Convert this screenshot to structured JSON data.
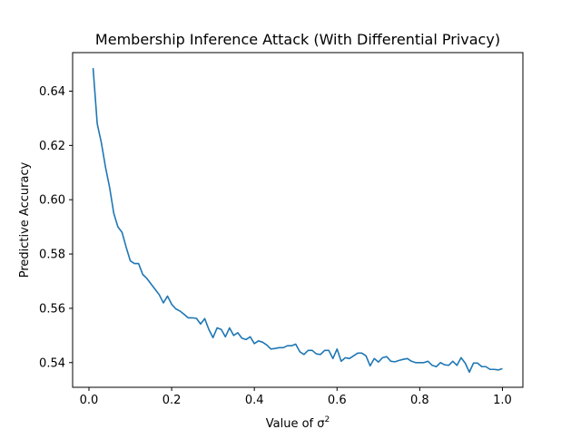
{
  "chart_data": {
    "type": "line",
    "title": "Membership Inference Attack (With Differential Privacy)",
    "xlabel": "Value of σ",
    "xlabel_superscript": "2",
    "ylabel": "Predictive Accuracy",
    "xlim": [
      -0.0395,
      1.0495
    ],
    "ylim": [
      0.5309,
      0.6542
    ],
    "xticks": [
      0.0,
      0.2,
      0.4,
      0.6,
      0.8,
      1.0
    ],
    "xtick_labels": [
      "0.0",
      "0.2",
      "0.4",
      "0.6",
      "0.8",
      "1.0"
    ],
    "yticks": [
      0.54,
      0.56,
      0.58,
      0.6,
      0.62,
      0.64
    ],
    "ytick_labels": [
      "0.54",
      "0.56",
      "0.58",
      "0.60",
      "0.62",
      "0.64"
    ],
    "grid": false,
    "legend": "none",
    "series": [
      {
        "color": "#1f77b4",
        "x": [
          0.01,
          0.02,
          0.03,
          0.04,
          0.05,
          0.06,
          0.07,
          0.08,
          0.09,
          0.1,
          0.11,
          0.12,
          0.13,
          0.14,
          0.15,
          0.16,
          0.17,
          0.18,
          0.19,
          0.2,
          0.21,
          0.22,
          0.23,
          0.24,
          0.25,
          0.26,
          0.27,
          0.28,
          0.29,
          0.3,
          0.31,
          0.32,
          0.33,
          0.34,
          0.35,
          0.36,
          0.37,
          0.38,
          0.39,
          0.4,
          0.41,
          0.42,
          0.43,
          0.44,
          0.45,
          0.46,
          0.47,
          0.48,
          0.49,
          0.5,
          0.51,
          0.52,
          0.53,
          0.54,
          0.55,
          0.56,
          0.57,
          0.58,
          0.59,
          0.6,
          0.61,
          0.62,
          0.63,
          0.64,
          0.65,
          0.66,
          0.67,
          0.68,
          0.69,
          0.7,
          0.71,
          0.72,
          0.73,
          0.74,
          0.75,
          0.76,
          0.77,
          0.78,
          0.79,
          0.8,
          0.81,
          0.82,
          0.83,
          0.84,
          0.85,
          0.86,
          0.87,
          0.88,
          0.89,
          0.9,
          0.91,
          0.92,
          0.93,
          0.94,
          0.95,
          0.96,
          0.97,
          0.98,
          0.99,
          1.0
        ],
        "y": [
          0.6485,
          0.628,
          0.621,
          0.612,
          0.6045,
          0.595,
          0.59,
          0.588,
          0.5825,
          0.5775,
          0.5765,
          0.5765,
          0.5725,
          0.571,
          0.569,
          0.567,
          0.565,
          0.562,
          0.5645,
          0.5615,
          0.5598,
          0.559,
          0.5578,
          0.5565,
          0.5565,
          0.5563,
          0.5542,
          0.5562,
          0.5522,
          0.5492,
          0.5528,
          0.5522,
          0.5495,
          0.5528,
          0.55,
          0.551,
          0.549,
          0.5485,
          0.5495,
          0.547,
          0.548,
          0.5475,
          0.5465,
          0.545,
          0.5452,
          0.5455,
          0.5455,
          0.5462,
          0.5462,
          0.5468,
          0.544,
          0.543,
          0.5445,
          0.5445,
          0.5432,
          0.543,
          0.5445,
          0.5445,
          0.5415,
          0.545,
          0.5405,
          0.5418,
          0.5415,
          0.5425,
          0.5435,
          0.5435,
          0.5425,
          0.5388,
          0.5415,
          0.5402,
          0.5418,
          0.5422,
          0.5405,
          0.5403,
          0.5408,
          0.5412,
          0.5415,
          0.5405,
          0.54,
          0.54,
          0.54,
          0.5405,
          0.539,
          0.5385,
          0.54,
          0.5392,
          0.539,
          0.5405,
          0.539,
          0.5418,
          0.5398,
          0.5365,
          0.5398,
          0.5398,
          0.5385,
          0.5385,
          0.5375,
          0.5375,
          0.5373,
          0.5378
        ]
      }
    ]
  }
}
